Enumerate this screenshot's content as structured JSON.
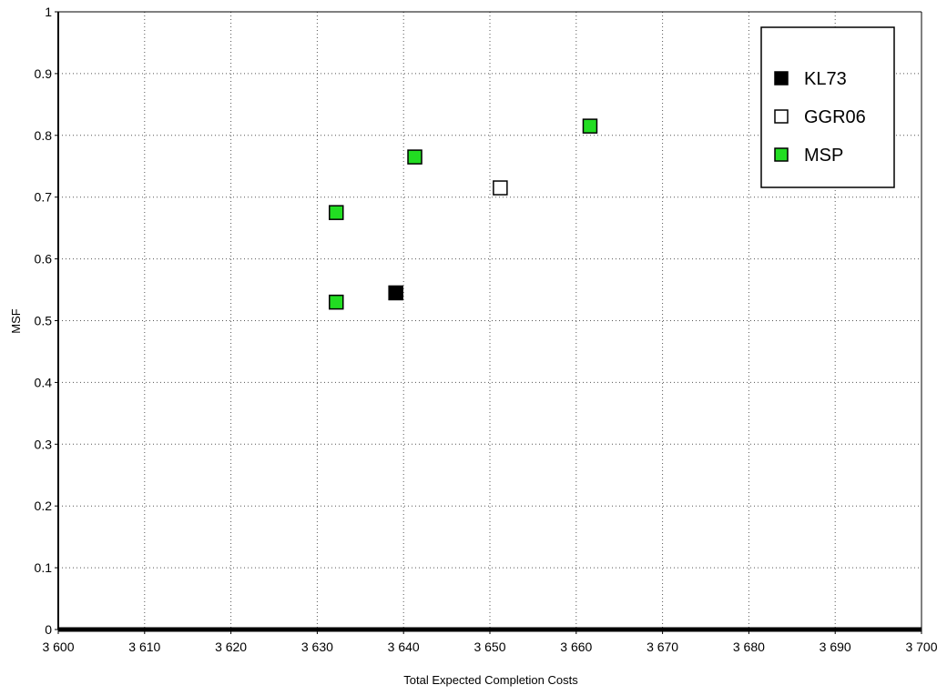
{
  "chart_data": {
    "type": "scatter",
    "xlabel": "Total Expected Completion Costs",
    "ylabel": "MSF",
    "xlim": [
      3600,
      3700
    ],
    "ylim": [
      0,
      1
    ],
    "x_ticks": [
      3600,
      3610,
      3620,
      3630,
      3640,
      3650,
      3660,
      3670,
      3680,
      3690,
      3700
    ],
    "x_tick_labels": [
      "3 600",
      "3 610",
      "3 620",
      "3 630",
      "3 640",
      "3 650",
      "3 660",
      "3 670",
      "3 680",
      "3 690",
      "3 700"
    ],
    "y_ticks": [
      0,
      0.1,
      0.2,
      0.3,
      0.4,
      0.5,
      0.6,
      0.7,
      0.8,
      0.9,
      1
    ],
    "y_tick_labels": [
      "0",
      "0.1",
      "0.2",
      "0.3",
      "0.4",
      "0.5",
      "0.6",
      "0.7",
      "0.8",
      "0.9",
      "1"
    ],
    "grid": true,
    "legend_position": "top-right",
    "series": [
      {
        "name": "KL73",
        "fill": "#000000",
        "stroke": "#000000",
        "points": [
          {
            "x": 3639.1,
            "y": 0.545
          }
        ]
      },
      {
        "name": "GGR06",
        "fill": "#ffffff",
        "stroke": "#000000",
        "points": [
          {
            "x": 3651.2,
            "y": 0.715
          }
        ]
      },
      {
        "name": "MSP",
        "fill": "#22dd22",
        "stroke": "#000000",
        "points": [
          {
            "x": 3632.2,
            "y": 0.53
          },
          {
            "x": 3632.2,
            "y": 0.675
          },
          {
            "x": 3641.3,
            "y": 0.765
          },
          {
            "x": 3661.6,
            "y": 0.815
          }
        ]
      }
    ]
  }
}
